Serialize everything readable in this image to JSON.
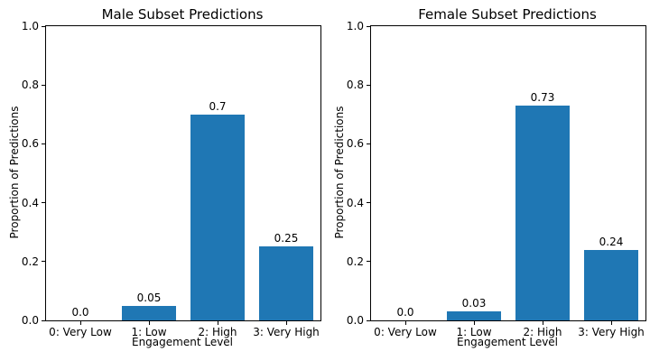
{
  "figure": {
    "background_color": "#ffffff",
    "bar_color": "#1f77b4",
    "axis_color": "#000000"
  },
  "chart_data": [
    {
      "type": "bar",
      "title": "Male Subset Predictions",
      "categories": [
        "0: Very Low",
        "1: Low",
        "2: High",
        "3: Very High"
      ],
      "values": [
        0.0,
        0.05,
        0.7,
        0.25
      ],
      "bar_labels": [
        "0.0",
        "0.05",
        "0.7",
        "0.25"
      ],
      "xlabel": "Engagement Level",
      "ylabel": "Proportion of Predictions",
      "ylim": [
        0.0,
        1.0
      ],
      "yticks": [
        "0.0",
        "0.2",
        "0.4",
        "0.6",
        "0.8",
        "1.0"
      ],
      "bar_color": "#1f77b4",
      "grid": false,
      "legend": null
    },
    {
      "type": "bar",
      "title": "Female Subset Predictions",
      "categories": [
        "0: Very Low",
        "1: Low",
        "2: High",
        "3: Very High"
      ],
      "values": [
        0.0,
        0.03,
        0.73,
        0.24
      ],
      "bar_labels": [
        "0.0",
        "0.03",
        "0.73",
        "0.24"
      ],
      "xlabel": "Engagement Level",
      "ylabel": "Proportion of Predictions",
      "ylim": [
        0.0,
        1.0
      ],
      "yticks": [
        "0.0",
        "0.2",
        "0.4",
        "0.6",
        "0.8",
        "1.0"
      ],
      "bar_color": "#1f77b4",
      "grid": false,
      "legend": null
    }
  ]
}
